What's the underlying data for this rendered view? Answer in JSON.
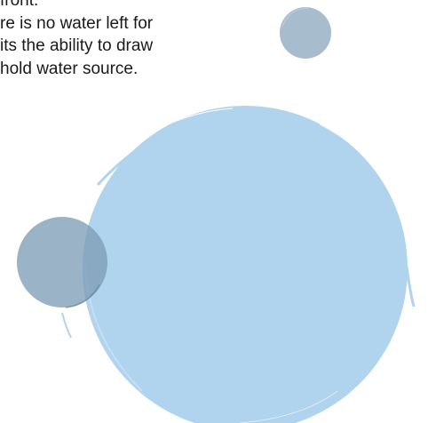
{
  "document": {
    "lines": [
      "front.",
      "re is no water left for",
      "its the ability to draw",
      "hold water source."
    ]
  },
  "decoration": {
    "big_circle_color": "#b0d3ee",
    "mid_circle_color": "#7d9db6",
    "small_circle_color": "#a7bccd",
    "icon": "watercolor-circles"
  }
}
